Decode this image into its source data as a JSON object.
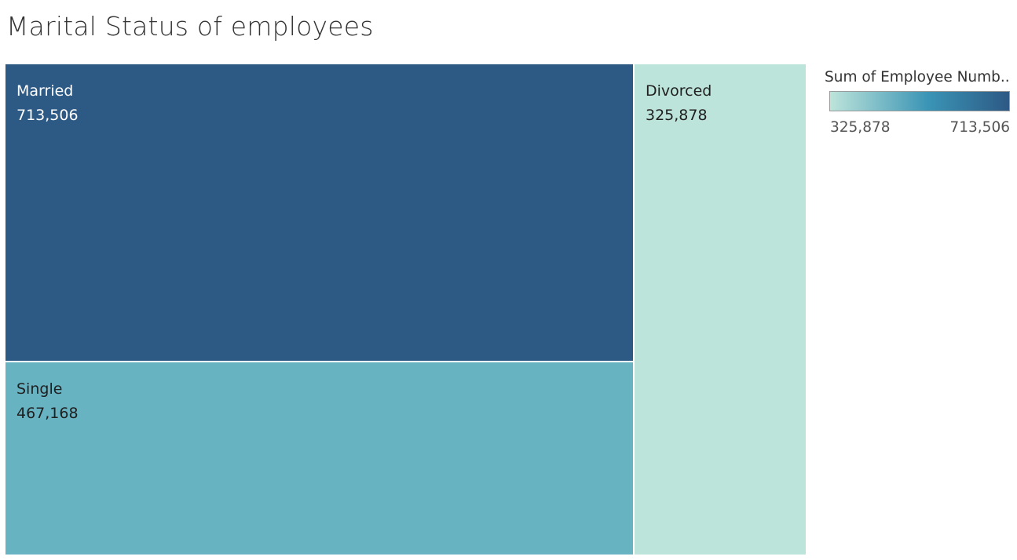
{
  "chart_data": {
    "type": "treemap",
    "title": "Marital Status of employees",
    "measure": "Sum of Employee Numb..",
    "categories": [
      "Married",
      "Single",
      "Divorced"
    ],
    "values": [
      713506,
      467168,
      325878
    ],
    "value_labels": [
      "713,506",
      "467,168",
      "325,878"
    ],
    "color_scale": {
      "min": 325878,
      "max": 713506,
      "min_label": "325,878",
      "max_label": "713,506",
      "colors": [
        "#bde4da",
        "#3a94b5",
        "#2d5985"
      ]
    },
    "tile_colors": [
      "#2d5985",
      "#68b3c2",
      "#bde4da"
    ],
    "label_colors": [
      "#ffffff",
      "#1f1f1f",
      "#1f1f1f"
    ],
    "legend_position": "right"
  }
}
